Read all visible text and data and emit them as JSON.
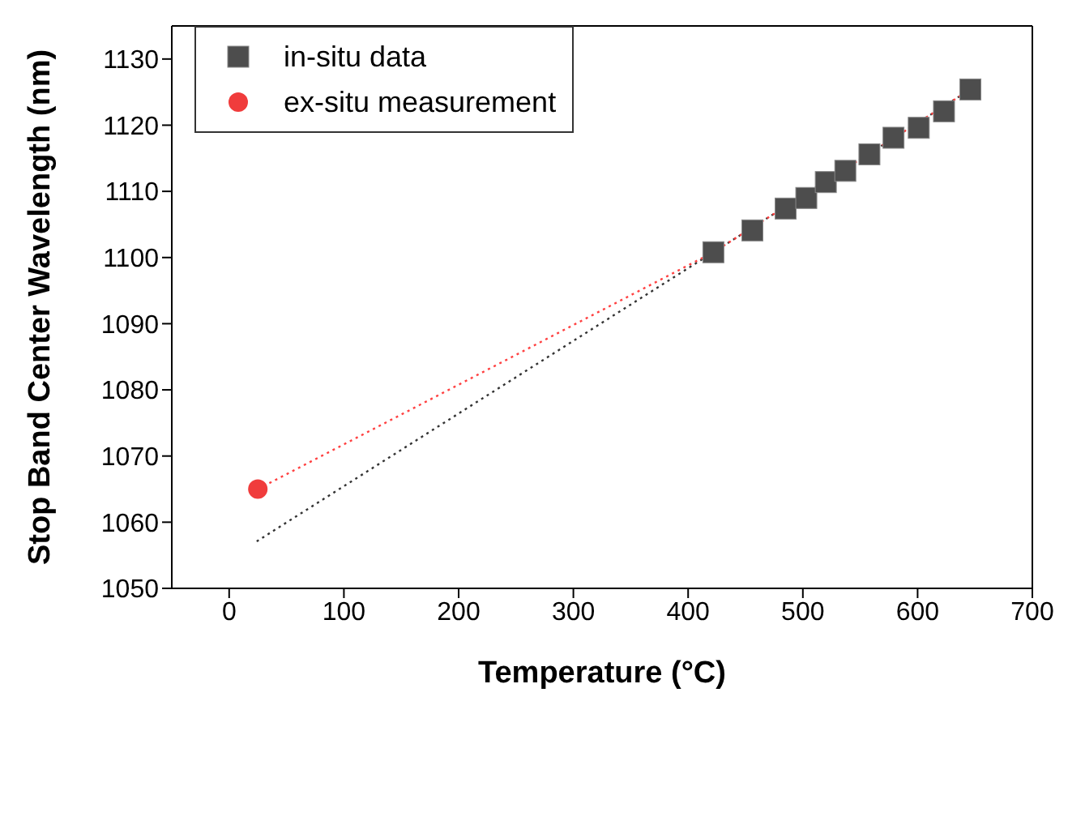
{
  "chart_data": {
    "type": "scatter",
    "xlabel": "Temperature (°C)",
    "ylabel": "Stop Band Center Wavelength (nm)",
    "xlim": [
      -50,
      700
    ],
    "xticks": [
      0,
      100,
      200,
      300,
      400,
      500,
      600,
      700
    ],
    "ylim": [
      1050,
      1135
    ],
    "yticks": [
      1050,
      1060,
      1070,
      1080,
      1090,
      1100,
      1110,
      1120,
      1130
    ],
    "legend": "top left",
    "series": [
      {
        "name": "in-situ data",
        "type": "scatter",
        "marker": "square",
        "color": "#4d4d4d",
        "x": [
          422,
          456,
          485,
          503,
          520,
          537,
          558,
          579,
          601,
          623,
          646
        ],
        "values": [
          1100.8,
          1104.1,
          1107.4,
          1109.0,
          1111.4,
          1113.1,
          1115.6,
          1118.1,
          1119.6,
          1122.1,
          1125.4
        ]
      },
      {
        "name": "ex-situ measurement",
        "type": "scatter",
        "marker": "circle",
        "color": "#f03c3c",
        "x": [
          25
        ],
        "values": [
          1065.0
        ]
      },
      {
        "type": "line",
        "marker": "none",
        "line_style": "dotted",
        "color": "#333333",
        "x": [
          24,
          646
        ],
        "values": [
          1057.1,
          1125.4
        ]
      },
      {
        "type": "line",
        "marker": "none",
        "line_style": "dotted",
        "color": "#ff4040",
        "x": [
          25,
          422,
          646
        ],
        "values": [
          1065.0,
          1100.8,
          1125.4
        ]
      }
    ]
  }
}
